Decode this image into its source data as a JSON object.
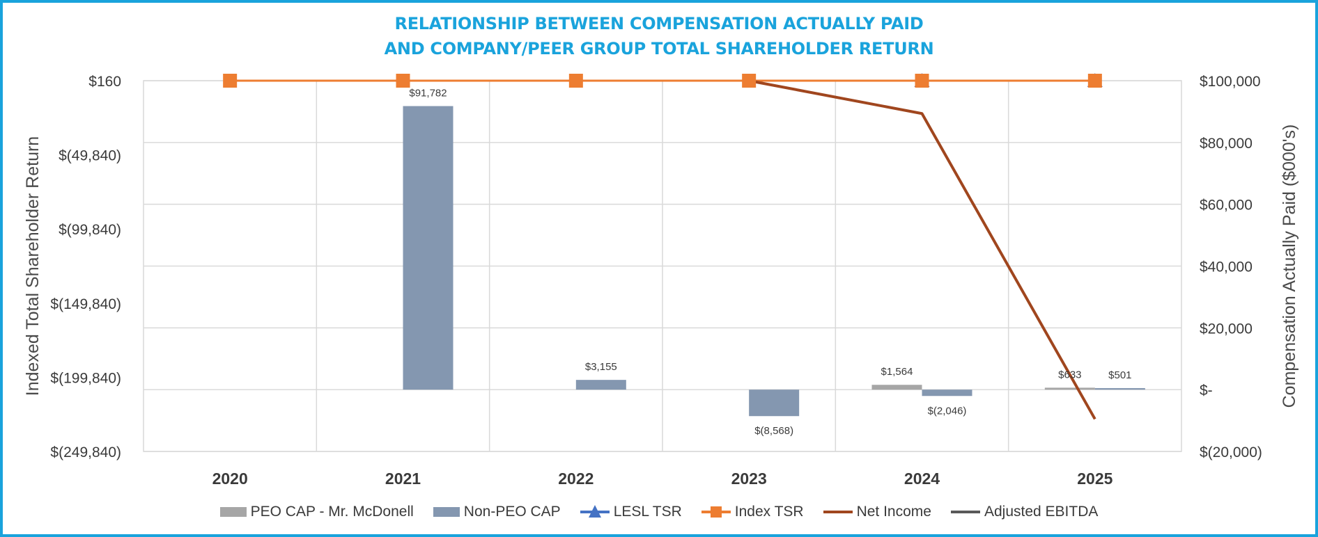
{
  "title": {
    "line1": "RELATIONSHIP BETWEEN COMPENSATION ACTUALLY PAID",
    "line2": "AND COMPANY/PEER GROUP TOTAL SHAREHOLDER RETURN"
  },
  "colors": {
    "title": "#1aa3dc",
    "peo_cap": "#a6a6a6",
    "non_peo_cap": "#8497b0",
    "lesl_tsr": "#4472c4",
    "index_tsr": "#ed7d31",
    "net_income": "#a0461e",
    "adjusted_ebitda": "#595959",
    "grid": "#d9d9d9"
  },
  "chart_data": {
    "type": "bar",
    "title": "RELATIONSHIP BETWEEN COMPENSATION ACTUALLY PAID AND COMPANY/PEER GROUP TOTAL SHAREHOLDER RETURN",
    "categories": [
      "2020",
      "2021",
      "2022",
      "2023",
      "2024",
      "2025"
    ],
    "ylabel_left": "Indexed Total Shareholder Return",
    "ylabel_right": "Compensation Actually Paid ($000's)",
    "ylim_left": [
      -249840,
      160
    ],
    "ylim_right": [
      -20000,
      100000
    ],
    "left_ticks": [
      {
        "value": 160,
        "label": "$160"
      },
      {
        "value": -49840,
        "label": "$(49,840)"
      },
      {
        "value": -99840,
        "label": "$(99,840)"
      },
      {
        "value": -149840,
        "label": "$(149,840)"
      },
      {
        "value": -199840,
        "label": "$(199,840)"
      },
      {
        "value": -249840,
        "label": "$(249,840)"
      }
    ],
    "right_ticks": [
      {
        "value": 100000,
        "label": "$100,000"
      },
      {
        "value": 80000,
        "label": "$80,000"
      },
      {
        "value": 60000,
        "label": "$60,000"
      },
      {
        "value": 40000,
        "label": "$40,000"
      },
      {
        "value": 20000,
        "label": "$20,000"
      },
      {
        "value": 0,
        "label": "$-"
      },
      {
        "value": -20000,
        "label": "$(20,000)"
      }
    ],
    "bar_series": [
      {
        "name": "PEO CAP - Mr. McDonell",
        "key": "peo_cap",
        "axis": "right",
        "values": [
          null,
          null,
          null,
          null,
          1564,
          633
        ],
        "labels": [
          "",
          "",
          "",
          "",
          "$1,564",
          "$633"
        ]
      },
      {
        "name": "Non-PEO CAP",
        "key": "non_peo_cap",
        "axis": "right",
        "values": [
          null,
          91782,
          3155,
          -8568,
          -2046,
          501
        ],
        "labels": [
          "",
          "$91,782",
          "$3,155",
          "$(8,568)",
          "$(2,046)",
          "$501"
        ]
      }
    ],
    "line_series": [
      {
        "name": "LESL TSR",
        "key": "lesl_tsr",
        "axis": "left",
        "marker": "triangle",
        "values": [
          null,
          null,
          null,
          null,
          160,
          160
        ]
      },
      {
        "name": "Index TSR",
        "key": "index_tsr",
        "axis": "left",
        "marker": "square",
        "values": [
          160,
          160,
          160,
          160,
          160,
          160
        ]
      },
      {
        "name": "Net Income",
        "key": "net_income",
        "axis": "left",
        "marker": "none",
        "values": [
          null,
          null,
          null,
          160,
          -22000,
          -228000
        ]
      },
      {
        "name": "Adjusted EBITDA",
        "key": "adjusted_ebitda",
        "axis": "left",
        "marker": "none",
        "values": [
          160,
          160,
          160,
          160,
          160,
          160
        ]
      }
    ],
    "legend": [
      {
        "name": "PEO CAP - Mr. McDonell",
        "key": "peo_cap",
        "kind": "bar"
      },
      {
        "name": "Non-PEO CAP",
        "key": "non_peo_cap",
        "kind": "bar"
      },
      {
        "name": "LESL TSR",
        "key": "lesl_tsr",
        "kind": "line-triangle"
      },
      {
        "name": "Index TSR",
        "key": "index_tsr",
        "kind": "line-square"
      },
      {
        "name": "Net Income",
        "key": "net_income",
        "kind": "line"
      },
      {
        "name": "Adjusted EBITDA",
        "key": "adjusted_ebitda",
        "kind": "line"
      }
    ],
    "grid": true,
    "legend_position": "bottom"
  }
}
